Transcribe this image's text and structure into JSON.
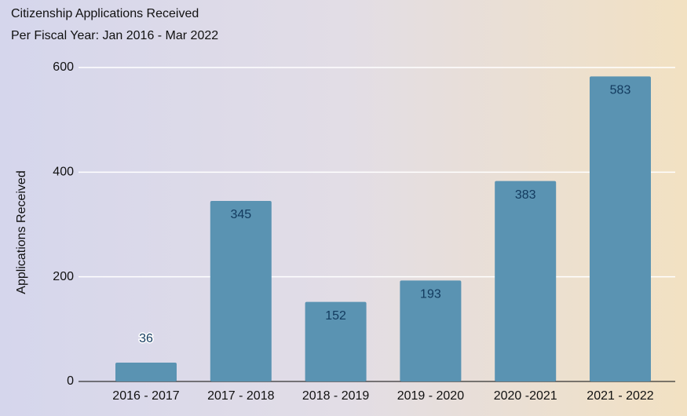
{
  "chart_data": {
    "type": "bar",
    "title": "Citizenship Applications Received",
    "subtitle": "Per Fiscal Year: Jan 2016 - Mar 2022",
    "y_label": "Applications Received",
    "categories": [
      "2016 - 2017",
      "2017 - 2018",
      "2018 - 2019",
      "2019 - 2020",
      "2020 -2021",
      "2021 - 2022"
    ],
    "values": [
      36,
      345,
      152,
      193,
      383,
      583
    ],
    "color": "#5a93b2",
    "ylim": [
      0,
      600
    ],
    "yticks": [
      0,
      200,
      400,
      600
    ],
    "grid": true
  }
}
